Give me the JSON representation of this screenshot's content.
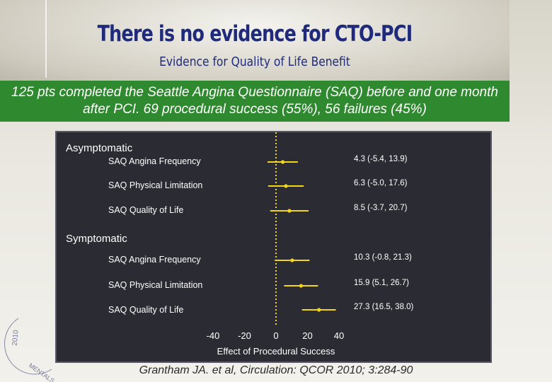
{
  "slide": {
    "title": "There is no evidence for CTO-PCI",
    "subtitle": "Evidence for Quality of Life Benefit",
    "banner": "125 pts completed the Seattle Angina Questionnaire (SAQ) before and one month after PCI.  69 procedural success (55%), 56 failures (45%)",
    "citation": "Grantham JA. et al, Circulation: QCOR 2010; 3:284-90",
    "watermark": "2010 ... MENTALS"
  },
  "chart_data": {
    "type": "forest",
    "xlabel": "Effect of Procedural Success",
    "xlim": [
      -40,
      40
    ],
    "xticks": [
      -40,
      -20,
      0,
      20,
      40
    ],
    "zero_line": "dotted, yellow",
    "marker_color": "#f2d61c",
    "groups": [
      {
        "name": "Asymptomatic",
        "rows": [
          {
            "label": "SAQ Angina Frequency",
            "estimate": 4.3,
            "ci": [
              -5.4,
              13.9
            ],
            "text": "4.3 (-5.4, 13.9)"
          },
          {
            "label": "SAQ Physical Limitation",
            "estimate": 6.3,
            "ci": [
              -5.0,
              17.6
            ],
            "text": "6.3 (-5.0, 17.6)"
          },
          {
            "label": "SAQ Quality of Life",
            "estimate": 8.5,
            "ci": [
              -3.7,
              20.7
            ],
            "text": "8.5 (-3.7, 20.7)"
          }
        ]
      },
      {
        "name": "Symptomatic",
        "rows": [
          {
            "label": "SAQ Angina Frequency",
            "estimate": 10.3,
            "ci": [
              -0.8,
              21.3
            ],
            "text": "10.3 (-0.8, 21.3)"
          },
          {
            "label": "SAQ Physical Limitation",
            "estimate": 15.9,
            "ci": [
              5.1,
              26.7
            ],
            "text": "15.9 (5.1, 26.7)"
          },
          {
            "label": "SAQ Quality of Life",
            "estimate": 27.3,
            "ci": [
              16.5,
              38.0
            ],
            "text": "27.3 (16.5, 38.0)"
          }
        ]
      }
    ]
  }
}
